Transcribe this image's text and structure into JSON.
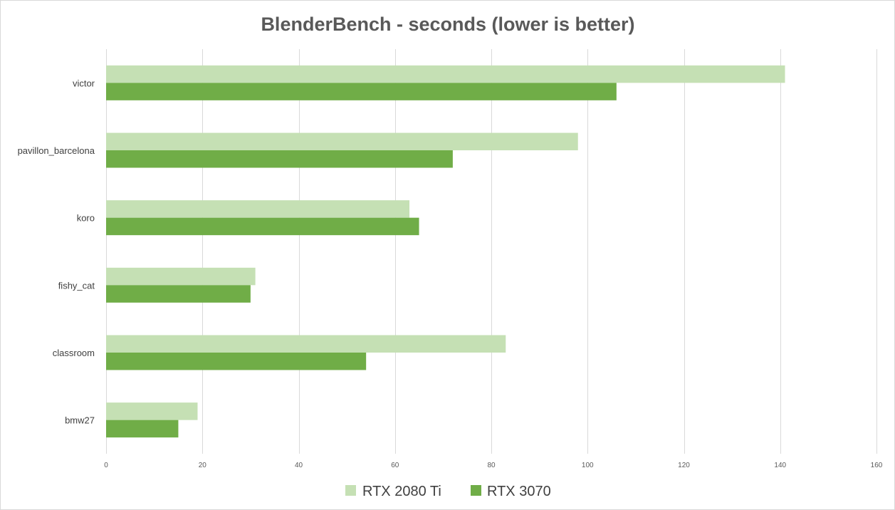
{
  "chart_data": {
    "type": "bar",
    "orientation": "horizontal",
    "title": "BlenderBench - seconds (lower is better)",
    "xlabel": "",
    "ylabel": "",
    "categories": [
      "victor",
      "pavillon_barcelona",
      "koro",
      "fishy_cat",
      "classroom",
      "bmw27"
    ],
    "series": [
      {
        "name": "RTX 2080 Ti",
        "color": "#c5e0b4",
        "values": [
          141,
          98,
          63,
          31,
          83,
          19
        ]
      },
      {
        "name": "RTX 3070",
        "color": "#70ad47",
        "values": [
          106,
          72,
          65,
          30,
          54,
          15
        ]
      }
    ],
    "xlim": [
      0,
      160
    ],
    "xticks": [
      0,
      20,
      40,
      60,
      80,
      100,
      120,
      140,
      160
    ],
    "grid": true,
    "legend_position": "bottom"
  }
}
